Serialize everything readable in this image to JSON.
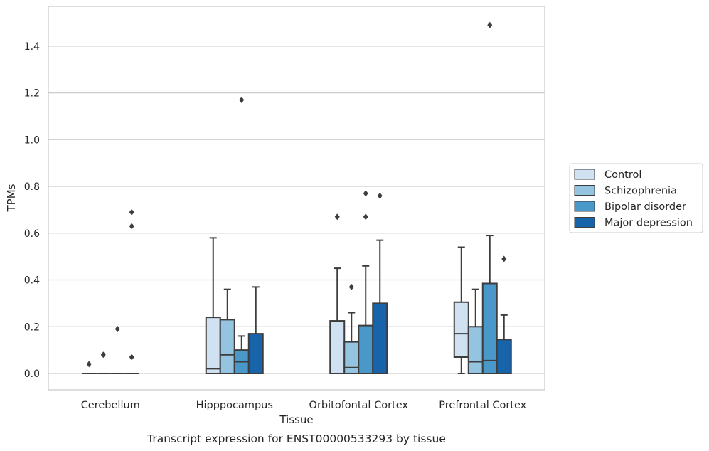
{
  "caption": "Transcript expression for ENST00000533293 by tissue",
  "chart_data": {
    "type": "box",
    "xlabel": "Tissue",
    "ylabel": "TPMs",
    "ylim": [
      -0.07,
      1.57
    ],
    "yticks": [
      0.0,
      0.2,
      0.4,
      0.6,
      0.8,
      1.0,
      1.2,
      1.4
    ],
    "ytick_labels": [
      "0.0",
      "0.2",
      "0.4",
      "0.6",
      "0.8",
      "1.0",
      "1.2",
      "1.4"
    ],
    "grid": "horizontal",
    "legend_position": "right, outside plot",
    "categories": [
      "Cerebellum",
      "Hipppocampus",
      "Orbitofontal Cortex",
      "Prefrontal Cortex"
    ],
    "series": [
      {
        "name": "Control",
        "color": "#d0e1f2",
        "boxes": [
          {
            "min": 0.0,
            "q1": 0.0,
            "median": 0.0,
            "q3": 0.0,
            "max": 0.0,
            "outliers": [
              0.04
            ]
          },
          {
            "min": 0.0,
            "q1": 0.0,
            "median": 0.02,
            "q3": 0.24,
            "max": 0.58,
            "outliers": []
          },
          {
            "min": 0.0,
            "q1": 0.0,
            "median": 0.0,
            "q3": 0.225,
            "max": 0.45,
            "outliers": [
              0.67
            ]
          },
          {
            "min": 0.0,
            "q1": 0.07,
            "median": 0.17,
            "q3": 0.305,
            "max": 0.54,
            "outliers": []
          }
        ]
      },
      {
        "name": "Schizophrenia",
        "color": "#94c4df",
        "boxes": [
          {
            "min": 0.0,
            "q1": 0.0,
            "median": 0.0,
            "q3": 0.0,
            "max": 0.0,
            "outliers": [
              0.08
            ]
          },
          {
            "min": 0.0,
            "q1": 0.0,
            "median": 0.08,
            "q3": 0.23,
            "max": 0.36,
            "outliers": []
          },
          {
            "min": 0.0,
            "q1": 0.0,
            "median": 0.025,
            "q3": 0.135,
            "max": 0.26,
            "outliers": [
              0.37
            ]
          },
          {
            "min": 0.0,
            "q1": 0.0,
            "median": 0.05,
            "q3": 0.2,
            "max": 0.36,
            "outliers": []
          }
        ]
      },
      {
        "name": "Bipolar disorder",
        "color": "#4a98c9",
        "boxes": [
          {
            "min": 0.0,
            "q1": 0.0,
            "median": 0.0,
            "q3": 0.0,
            "max": 0.0,
            "outliers": [
              0.19
            ]
          },
          {
            "min": 0.0,
            "q1": 0.0,
            "median": 0.05,
            "q3": 0.1,
            "max": 0.16,
            "outliers": [
              1.17
            ]
          },
          {
            "min": 0.0,
            "q1": 0.0,
            "median": 0.0,
            "q3": 0.205,
            "max": 0.46,
            "outliers": [
              0.67,
              0.77
            ]
          },
          {
            "min": 0.0,
            "q1": 0.0,
            "median": 0.055,
            "q3": 0.385,
            "max": 0.59,
            "outliers": [
              1.49
            ]
          }
        ]
      },
      {
        "name": "Major depression",
        "color": "#1764ab",
        "boxes": [
          {
            "min": 0.0,
            "q1": 0.0,
            "median": 0.0,
            "q3": 0.0,
            "max": 0.0,
            "outliers": [
              0.07,
              0.63,
              0.69
            ]
          },
          {
            "min": 0.0,
            "q1": 0.0,
            "median": 0.0,
            "q3": 0.17,
            "max": 0.37,
            "outliers": []
          },
          {
            "min": 0.0,
            "q1": 0.0,
            "median": 0.0,
            "q3": 0.3,
            "max": 0.57,
            "outliers": [
              0.76
            ]
          },
          {
            "min": 0.0,
            "q1": 0.0,
            "median": 0.0,
            "q3": 0.145,
            "max": 0.25,
            "outliers": [
              0.49
            ]
          }
        ]
      }
    ]
  }
}
